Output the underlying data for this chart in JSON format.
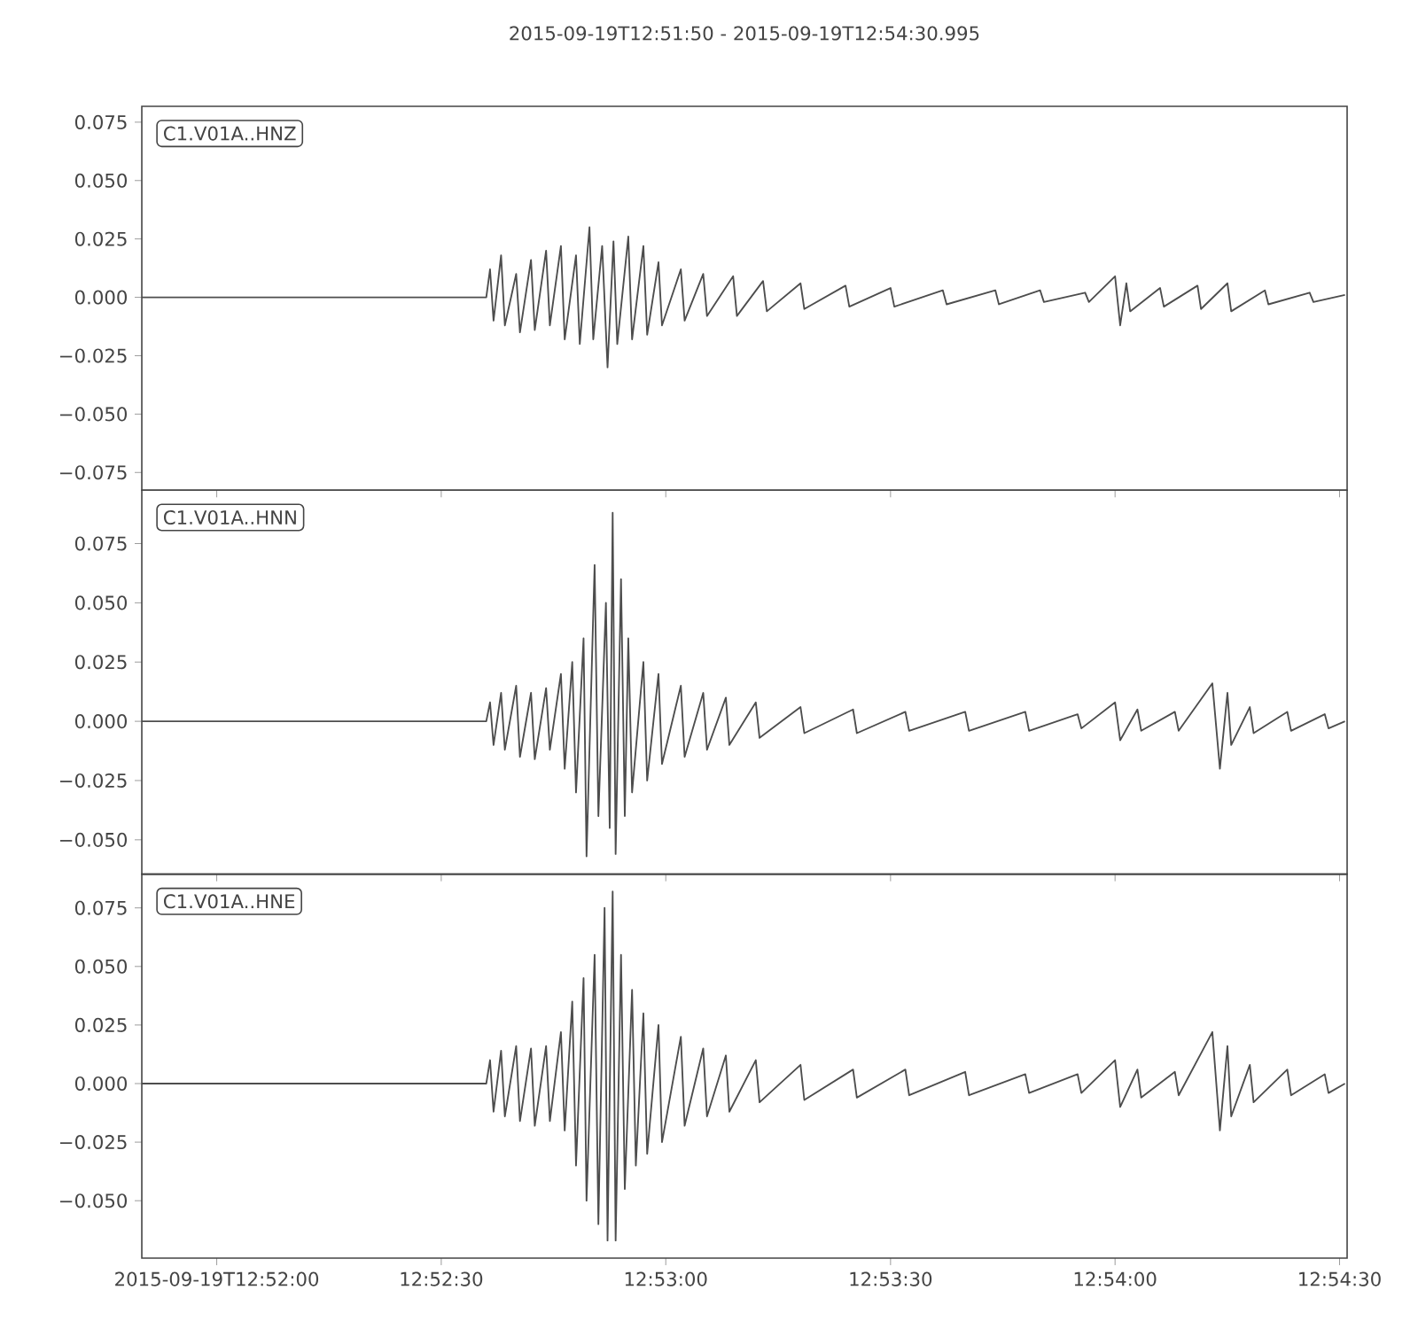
{
  "chart_data": [
    {
      "type": "line",
      "title": "2015-09-19T12:51:50  -  2015-09-19T12:54:30.995",
      "annotations": [
        "C1.V01A..HNZ"
      ],
      "color": "#4d4d4d",
      "tick_labels": "y",
      "xlim": [
        12.86389,
        12.90861
      ],
      "ylim": [
        -0.0826,
        0.0818
      ],
      "xticks": [
        {
          "value": 12.86667,
          "label": null
        },
        {
          "value": 12.875,
          "label": null
        },
        {
          "value": 12.88333,
          "label": null
        },
        {
          "value": 12.89167,
          "label": null
        },
        {
          "value": 12.9,
          "label": null
        },
        {
          "value": 12.90833,
          "label": null
        }
      ],
      "yticks": [
        {
          "value": -0.075,
          "label": "−0.075"
        },
        {
          "value": -0.05,
          "label": "−0.050"
        },
        {
          "value": -0.025,
          "label": "−0.025"
        },
        {
          "value": 0,
          "label": "0.000"
        },
        {
          "value": 0.025,
          "label": "0.025"
        },
        {
          "value": 0.05,
          "label": "0.050"
        },
        {
          "value": 0.075,
          "label": "0.075"
        }
      ],
      "x": [
        12.86389,
        12.87667,
        12.87681,
        12.87694,
        12.87722,
        12.87736,
        12.87778,
        12.87792,
        12.87833,
        12.87847,
        12.87889,
        12.87903,
        12.87944,
        12.87958,
        12.88,
        12.88014,
        12.8805,
        12.88064,
        12.88097,
        12.88117,
        12.88139,
        12.88153,
        12.88194,
        12.88208,
        12.8825,
        12.88264,
        12.88306,
        12.88319,
        12.88389,
        12.88403,
        12.88472,
        12.88486,
        12.88583,
        12.88597,
        12.88694,
        12.88708,
        12.88833,
        12.88847,
        12.89,
        12.89014,
        12.89167,
        12.89181,
        12.89361,
        12.89375,
        12.89556,
        12.89569,
        12.89722,
        12.89736,
        12.89889,
        12.89903,
        12.9,
        12.90019,
        12.90042,
        12.90056,
        12.90167,
        12.90181,
        12.90306,
        12.90319,
        12.90417,
        12.90431,
        12.90556,
        12.90569,
        12.90722,
        12.90736,
        12.90853
      ],
      "values": [
        0,
        0,
        0.012,
        -0.01,
        0.018,
        -0.012,
        0.01,
        -0.015,
        0.016,
        -0.014,
        0.02,
        -0.012,
        0.022,
        -0.018,
        0.018,
        -0.02,
        0.03,
        -0.018,
        0.022,
        -0.03,
        0.024,
        -0.02,
        0.026,
        -0.018,
        0.022,
        -0.016,
        0.015,
        -0.012,
        0.012,
        -0.01,
        0.01,
        -0.008,
        0.009,
        -0.008,
        0.007,
        -0.006,
        0.006,
        -0.005,
        0.005,
        -0.004,
        0.004,
        -0.004,
        0.003,
        -0.003,
        0.003,
        -0.003,
        0.003,
        -0.002,
        0.002,
        -0.002,
        0.009,
        -0.012,
        0.006,
        -0.006,
        0.004,
        -0.004,
        0.005,
        -0.005,
        0.006,
        -0.006,
        0.003,
        -0.003,
        0.002,
        -0.002,
        0.001
      ]
    },
    {
      "type": "line",
      "annotations": [
        "C1.V01A..HNN"
      ],
      "color": "#4d4d4d",
      "tick_labels": "y",
      "xlim": [
        12.86389,
        12.90861
      ],
      "ylim": [
        -0.0645,
        0.0975
      ],
      "xticks": [
        {
          "value": 12.86667,
          "label": null
        },
        {
          "value": 12.875,
          "label": null
        },
        {
          "value": 12.88333,
          "label": null
        },
        {
          "value": 12.89167,
          "label": null
        },
        {
          "value": 12.9,
          "label": null
        },
        {
          "value": 12.90833,
          "label": null
        }
      ],
      "yticks": [
        {
          "value": -0.05,
          "label": "−0.050"
        },
        {
          "value": -0.025,
          "label": "−0.025"
        },
        {
          "value": 0,
          "label": "0.000"
        },
        {
          "value": 0.025,
          "label": "0.025"
        },
        {
          "value": 0.05,
          "label": "0.050"
        },
        {
          "value": 0.075,
          "label": "0.075"
        }
      ],
      "x": [
        12.86389,
        12.87667,
        12.87681,
        12.87694,
        12.87722,
        12.87736,
        12.87778,
        12.87792,
        12.87833,
        12.87847,
        12.87889,
        12.87903,
        12.87944,
        12.87958,
        12.87986,
        12.88,
        12.88028,
        12.88039,
        12.88069,
        12.88083,
        12.88111,
        12.88125,
        12.88136,
        12.88147,
        12.88167,
        12.88181,
        12.88194,
        12.88208,
        12.8825,
        12.88264,
        12.88306,
        12.88319,
        12.88389,
        12.88403,
        12.88472,
        12.88486,
        12.88556,
        12.88569,
        12.88667,
        12.88681,
        12.88833,
        12.88847,
        12.89028,
        12.89042,
        12.89222,
        12.89236,
        12.89444,
        12.89458,
        12.89667,
        12.89681,
        12.89861,
        12.89875,
        12.9,
        12.90019,
        12.90083,
        12.90097,
        12.90222,
        12.90236,
        12.90361,
        12.90389,
        12.90417,
        12.90431,
        12.905,
        12.90514,
        12.90639,
        12.90653,
        12.90778,
        12.90792,
        12.90853
      ],
      "values": [
        0,
        0,
        0.008,
        -0.01,
        0.012,
        -0.012,
        0.015,
        -0.015,
        0.012,
        -0.016,
        0.014,
        -0.012,
        0.02,
        -0.02,
        0.025,
        -0.03,
        0.035,
        -0.057,
        0.066,
        -0.04,
        0.05,
        -0.045,
        0.088,
        -0.056,
        0.06,
        -0.04,
        0.035,
        -0.03,
        0.025,
        -0.025,
        0.02,
        -0.018,
        0.015,
        -0.015,
        0.012,
        -0.012,
        0.01,
        -0.01,
        0.008,
        -0.007,
        0.006,
        -0.005,
        0.005,
        -0.005,
        0.004,
        -0.004,
        0.004,
        -0.004,
        0.004,
        -0.004,
        0.003,
        -0.003,
        0.008,
        -0.008,
        0.005,
        -0.004,
        0.004,
        -0.004,
        0.016,
        -0.02,
        0.012,
        -0.01,
        0.006,
        -0.005,
        0.004,
        -0.004,
        0.003,
        -0.003,
        0
      ]
    },
    {
      "type": "line",
      "annotations": [
        "C1.V01A..HNE"
      ],
      "color": "#4d4d4d",
      "xlim": [
        12.86389,
        12.90861
      ],
      "ylim": [
        -0.0745,
        0.0894
      ],
      "xticks": [
        {
          "value": 12.86667,
          "label": "2015-09-19T12:52:00"
        },
        {
          "value": 12.875,
          "label": "12:52:30"
        },
        {
          "value": 12.88333,
          "label": "12:53:00"
        },
        {
          "value": 12.89167,
          "label": "12:53:30"
        },
        {
          "value": 12.9,
          "label": "12:54:00"
        },
        {
          "value": 12.90833,
          "label": "12:54:30"
        }
      ],
      "yticks": [
        {
          "value": -0.05,
          "label": "−0.050"
        },
        {
          "value": -0.025,
          "label": "−0.025"
        },
        {
          "value": 0,
          "label": "0.000"
        },
        {
          "value": 0.025,
          "label": "0.025"
        },
        {
          "value": 0.05,
          "label": "0.050"
        },
        {
          "value": 0.075,
          "label": "0.075"
        }
      ],
      "x": [
        12.86389,
        12.87667,
        12.87681,
        12.87694,
        12.87722,
        12.87736,
        12.87778,
        12.87792,
        12.87833,
        12.87847,
        12.87889,
        12.87903,
        12.87944,
        12.87958,
        12.87986,
        12.88,
        12.88028,
        12.88039,
        12.88069,
        12.88083,
        12.88106,
        12.88117,
        12.88136,
        12.88147,
        12.88167,
        12.88181,
        12.88208,
        12.88222,
        12.8825,
        12.88264,
        12.88306,
        12.88319,
        12.88389,
        12.88403,
        12.88472,
        12.88486,
        12.88556,
        12.88569,
        12.88667,
        12.88681,
        12.88833,
        12.88847,
        12.89028,
        12.89042,
        12.89222,
        12.89236,
        12.89444,
        12.89458,
        12.89667,
        12.89681,
        12.89861,
        12.89875,
        12.9,
        12.90019,
        12.90083,
        12.90097,
        12.90222,
        12.90236,
        12.90361,
        12.90389,
        12.90417,
        12.90431,
        12.905,
        12.90514,
        12.90639,
        12.90653,
        12.90778,
        12.90792,
        12.90853
      ],
      "values": [
        0,
        0,
        0.01,
        -0.012,
        0.014,
        -0.014,
        0.016,
        -0.016,
        0.015,
        -0.018,
        0.016,
        -0.016,
        0.022,
        -0.02,
        0.035,
        -0.035,
        0.045,
        -0.05,
        0.055,
        -0.06,
        0.075,
        -0.067,
        0.082,
        -0.067,
        0.055,
        -0.045,
        0.04,
        -0.035,
        0.03,
        -0.03,
        0.025,
        -0.025,
        0.02,
        -0.018,
        0.015,
        -0.014,
        0.012,
        -0.012,
        0.01,
        -0.008,
        0.008,
        -0.007,
        0.006,
        -0.006,
        0.006,
        -0.005,
        0.005,
        -0.005,
        0.004,
        -0.004,
        0.004,
        -0.004,
        0.01,
        -0.01,
        0.006,
        -0.006,
        0.005,
        -0.005,
        0.022,
        -0.02,
        0.016,
        -0.014,
        0.008,
        -0.008,
        0.006,
        -0.005,
        0.004,
        -0.004,
        0
      ]
    }
  ]
}
